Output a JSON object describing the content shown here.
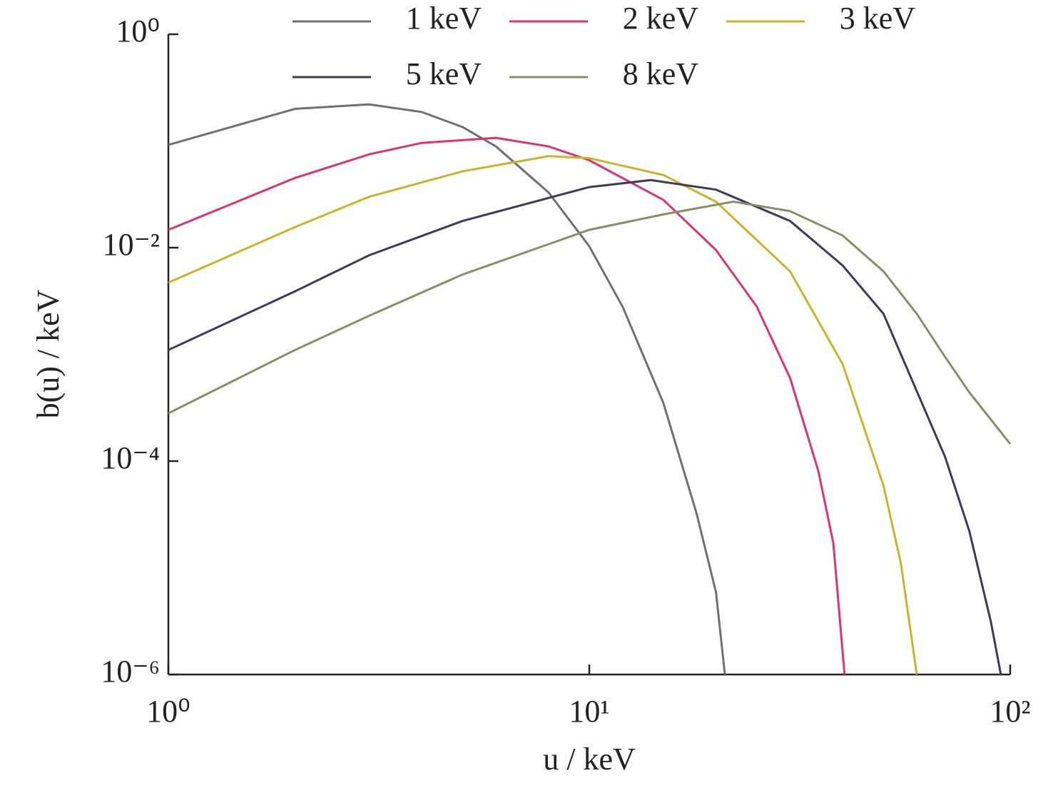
{
  "chart_data": {
    "type": "line",
    "x_label": "u / keV",
    "y_label": "b(u) / keV",
    "log_x": true,
    "log_y": true,
    "xlim": [
      1,
      100
    ],
    "ylim": [
      1e-06,
      1
    ],
    "xticks": [
      {
        "value": 1,
        "label": "10⁰"
      },
      {
        "value": 10,
        "label": "10¹"
      },
      {
        "value": 100,
        "label": "10²"
      }
    ],
    "yticks": [
      {
        "value": 1e-06,
        "label": "10⁻⁶"
      },
      {
        "value": 0.0001,
        "label": "10⁻⁴"
      },
      {
        "value": 0.01,
        "label": "10⁻²"
      },
      {
        "value": 1,
        "label": "10⁰"
      }
    ],
    "legend": "top",
    "series": [
      {
        "name": "1 keV",
        "color": "#707070",
        "x": [
          1,
          2,
          3,
          4,
          5,
          6,
          8,
          10,
          12,
          15,
          18,
          20,
          21
        ],
        "values": [
          0.092,
          0.2,
          0.22,
          0.187,
          0.135,
          0.089,
          0.033,
          0.0103,
          0.0028,
          0.00035,
          3.2e-05,
          5.9e-06,
          1e-06
        ]
      },
      {
        "name": "2 keV",
        "color": "#e0336e",
        "x": [
          1,
          2,
          3,
          4,
          6,
          8,
          10,
          15,
          20,
          25,
          30,
          35,
          38,
          40.4
        ],
        "values": [
          0.0147,
          0.045,
          0.075,
          0.096,
          0.107,
          0.089,
          0.066,
          0.028,
          0.0095,
          0.0028,
          0.0006,
          8.1e-05,
          1.7e-05,
          1e-06
        ]
      },
      {
        "name": "3 keV",
        "color": "#c9b52a",
        "x": [
          1,
          2,
          3,
          5,
          8,
          10,
          15,
          20,
          30,
          40,
          50,
          55,
          60
        ],
        "values": [
          0.0047,
          0.0156,
          0.03,
          0.052,
          0.072,
          0.069,
          0.048,
          0.027,
          0.006,
          0.00081,
          5.9e-05,
          1.1e-05,
          1e-06
        ]
      },
      {
        "name": "5 keV",
        "color": "#3c3c58",
        "x": [
          1,
          2,
          3,
          5,
          10,
          14,
          20,
          30,
          40,
          50,
          70,
          80,
          90,
          95
        ],
        "values": [
          0.0011,
          0.0039,
          0.0085,
          0.0178,
          0.037,
          0.043,
          0.035,
          0.0178,
          0.0068,
          0.0024,
          0.00011,
          2.2e-05,
          3.1e-06,
          1e-06
        ]
      },
      {
        "name": "8 keV",
        "color": "#8c8c66",
        "x": [
          1,
          2,
          3,
          5,
          10,
          15,
          22,
          30,
          40,
          50,
          60,
          70,
          80,
          100
        ],
        "values": [
          0.00028,
          0.0011,
          0.0023,
          0.0056,
          0.0147,
          0.0205,
          0.027,
          0.022,
          0.013,
          0.006,
          0.0024,
          0.00095,
          0.00044,
          0.000145
        ]
      }
    ]
  }
}
